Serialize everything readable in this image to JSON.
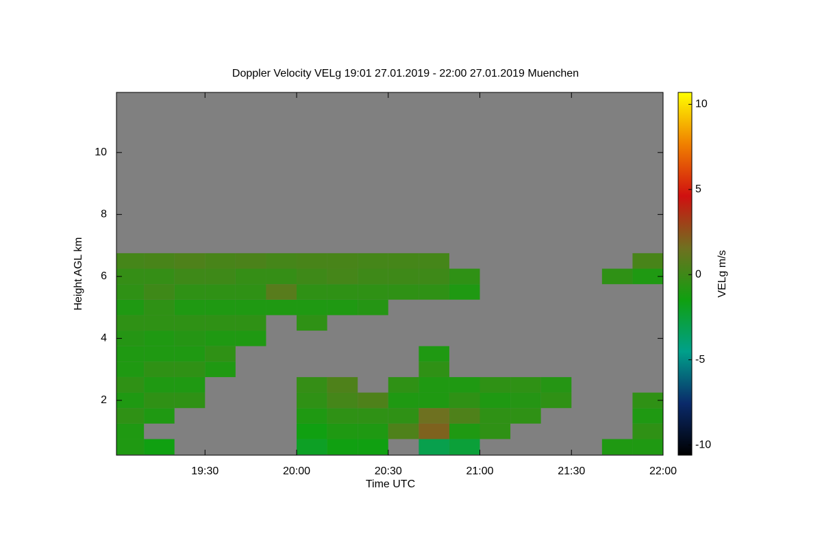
{
  "chart_data": {
    "type": "heatmap",
    "title": "Doppler Velocity VELg   19:01 27.01.2019 - 22:00 27.01.2019 Muenchen",
    "x_label": "Time UTC",
    "y_label": "Height AGL km",
    "colorbar_label": "VELg m/s",
    "x": [
      "19:05",
      "19:15",
      "19:25",
      "19:35",
      "19:45",
      "19:55",
      "20:05",
      "20:15",
      "20:25",
      "20:35",
      "20:45",
      "20:55",
      "21:05",
      "21:15",
      "21:25",
      "21:35",
      "21:45",
      "21:55"
    ],
    "y": [
      0.5,
      1,
      1.5,
      2,
      2.5,
      3,
      3.5,
      4,
      4.5,
      5,
      5.5,
      6,
      6.5
    ],
    "values": [
      [
        -1,
        -1.5,
        null,
        null,
        null,
        null,
        -2,
        -1.5,
        -1.5,
        null,
        -3,
        -2.5,
        null,
        null,
        null,
        null,
        -1,
        -1
      ],
      [
        -1,
        null,
        null,
        null,
        null,
        null,
        -1.5,
        -1,
        -1,
        0.5,
        2,
        -1,
        -0.5,
        null,
        null,
        null,
        null,
        -0.5
      ],
      [
        -0.5,
        -1,
        null,
        null,
        null,
        null,
        -1,
        -0.5,
        -0.5,
        -0.5,
        1.5,
        0.5,
        -0.5,
        -0.5,
        null,
        null,
        null,
        -1
      ],
      [
        -1,
        -0.5,
        -0.5,
        null,
        null,
        null,
        -0.5,
        0.2,
        0.5,
        -1,
        -1,
        -0.5,
        -1,
        -0.8,
        -0.5,
        null,
        null,
        -0.5
      ],
      [
        -0.5,
        -1,
        -1,
        null,
        null,
        null,
        -0.3,
        0.5,
        null,
        -0.5,
        -1,
        -1,
        -0.5,
        -0.5,
        -0.8,
        null,
        null,
        null
      ],
      [
        -1,
        -0.5,
        -0.5,
        -1,
        null,
        null,
        null,
        null,
        null,
        null,
        -0.5,
        null,
        null,
        null,
        null,
        null,
        null,
        null
      ],
      [
        -1,
        -1,
        -1,
        -0.5,
        null,
        null,
        null,
        null,
        null,
        null,
        -1,
        null,
        null,
        null,
        null,
        null,
        null,
        null
      ],
      [
        -0.8,
        -1,
        -0.8,
        -1,
        -1,
        null,
        null,
        null,
        null,
        null,
        null,
        null,
        null,
        null,
        null,
        null,
        null,
        null
      ],
      [
        -0.5,
        -0.5,
        -0.5,
        -0.5,
        -0.5,
        null,
        -0.5,
        null,
        null,
        null,
        null,
        null,
        null,
        null,
        null,
        null,
        null,
        null
      ],
      [
        -1,
        -0.5,
        -1,
        -1,
        -1,
        -1,
        -1,
        -1,
        -0.8,
        null,
        null,
        null,
        null,
        null,
        null,
        null,
        null,
        null
      ],
      [
        -0.5,
        0,
        -0.5,
        -0.5,
        -0.5,
        0.8,
        -0.5,
        -0.5,
        -0.5,
        -0.5,
        -0.5,
        -1,
        null,
        null,
        null,
        null,
        null,
        null
      ],
      [
        -0.3,
        -0.3,
        0,
        0,
        -0.3,
        -0.3,
        0,
        0.2,
        0,
        0,
        0,
        -0.5,
        null,
        null,
        null,
        null,
        -0.5,
        -1
      ],
      [
        0.2,
        0.3,
        0.5,
        0.3,
        0.4,
        0.2,
        0.3,
        0.3,
        0.2,
        0.2,
        0.2,
        null,
        null,
        null,
        null,
        null,
        null,
        0.3
      ]
    ],
    "xlim": [
      "19:01",
      "22:00"
    ],
    "xticks": [
      "19:30",
      "20:00",
      "20:30",
      "21:00",
      "21:30",
      "22:00"
    ],
    "ylim": [
      0.23,
      11.94
    ],
    "yticks": [
      2,
      4,
      6,
      8,
      10
    ],
    "clim": [
      -10.6,
      10.7
    ],
    "cticks": [
      -10,
      -5,
      0,
      5,
      10
    ],
    "background": "#808080",
    "colormap": [
      "#000000",
      "#0a2a6a",
      "#00a08a",
      "#10a010",
      "#707020",
      "#d01010",
      "#f08000",
      "#ffff00"
    ]
  }
}
